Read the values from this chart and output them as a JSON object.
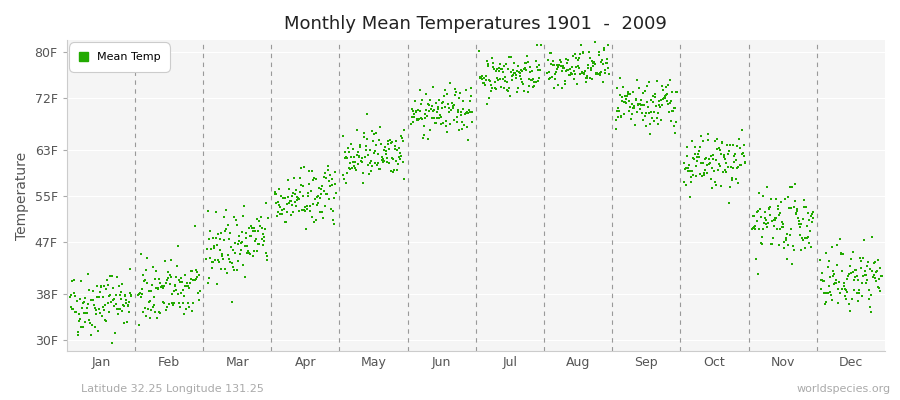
{
  "title": "Monthly Mean Temperatures 1901  -  2009",
  "ylabel": "Temperature",
  "subtitle_left": "Latitude 32.25 Longitude 131.25",
  "subtitle_right": "worldspecies.org",
  "legend_label": "Mean Temp",
  "yticks": [
    30,
    38,
    47,
    55,
    63,
    72,
    80
  ],
  "ytick_labels": [
    "30F",
    "38F",
    "47F",
    "55F",
    "63F",
    "72F",
    "80F"
  ],
  "ylim": [
    28,
    82
  ],
  "months": [
    "Jan",
    "Feb",
    "Mar",
    "Apr",
    "May",
    "Jun",
    "Jul",
    "Aug",
    "Sep",
    "Oct",
    "Nov",
    "Dec"
  ],
  "dot_color": "#22aa00",
  "background_color": "#ffffff",
  "plot_bg_color": "#f5f5f5",
  "n_years": 109,
  "month_means": [
    36.5,
    38.5,
    46.5,
    54.5,
    62.5,
    69.5,
    76.0,
    77.0,
    70.5,
    60.5,
    50.0,
    40.5
  ],
  "month_stds": [
    2.8,
    2.8,
    3.0,
    2.5,
    2.2,
    2.0,
    1.8,
    1.8,
    2.2,
    2.5,
    2.8,
    2.8
  ],
  "month_trends": [
    0.01,
    0.01,
    0.02,
    0.015,
    0.015,
    0.01,
    0.01,
    0.01,
    0.015,
    0.015,
    0.01,
    0.01
  ],
  "seed": 42
}
